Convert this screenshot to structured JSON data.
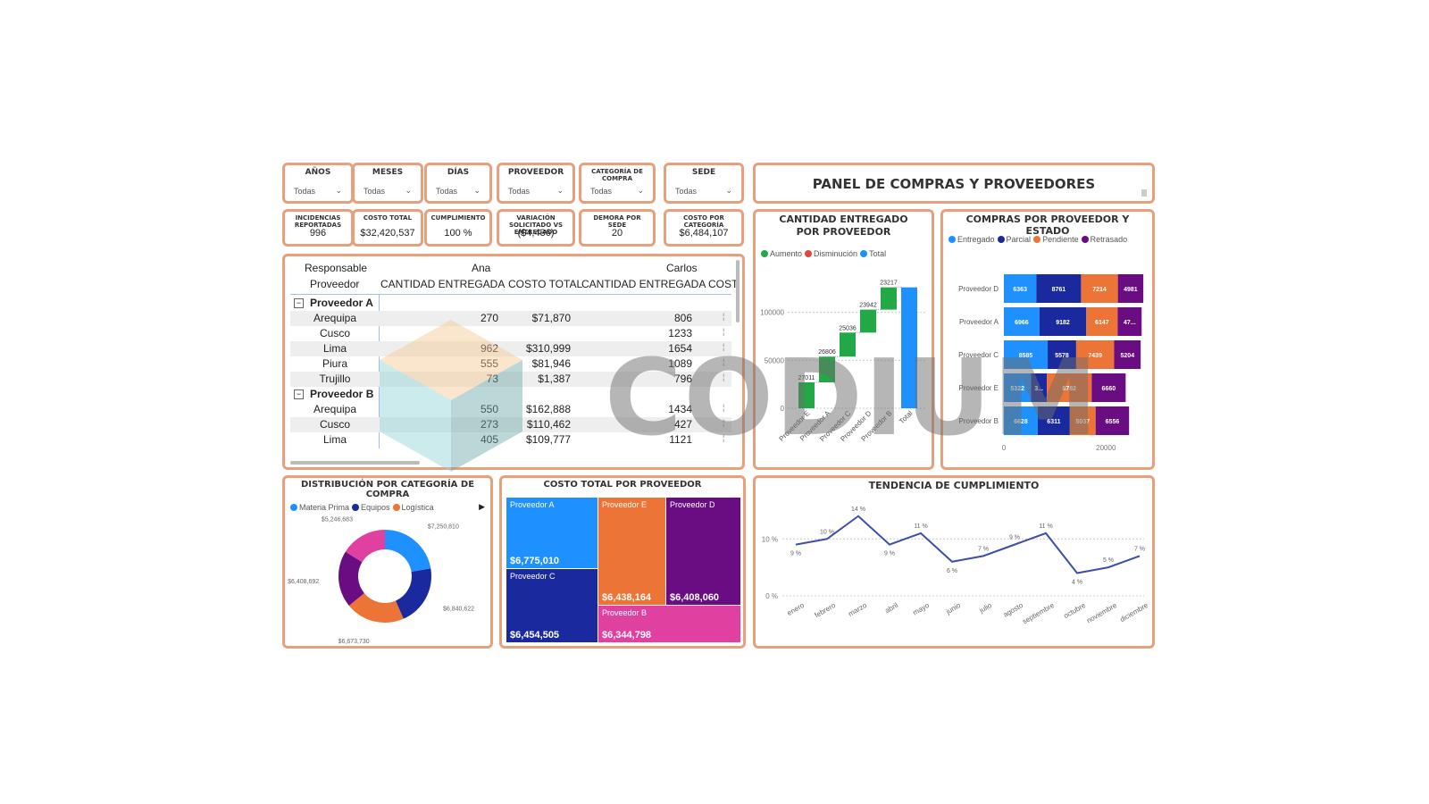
{
  "slicers": [
    {
      "label": "AÑOS",
      "value": "Todas"
    },
    {
      "label": "MESES",
      "value": "Todas"
    },
    {
      "label": "DÍAS",
      "value": "Todas"
    },
    {
      "label": "PROVEEDOR",
      "value": "Todas"
    },
    {
      "label": "CATEGORÍA DE COMPRA",
      "value": "Todas"
    },
    {
      "label": "SEDE",
      "value": "Todas"
    }
  ],
  "kpis": [
    {
      "label": "INCIDENCIAS REPORTADAS",
      "value": "996"
    },
    {
      "label": "COSTO TOTAL",
      "value": "$32,420,537"
    },
    {
      "label": "CUMPLIMIENTO",
      "value": "100 %"
    },
    {
      "label": "VARIACIÓN SOLICITADO VS ENTREGADO",
      "value": "($4,436)"
    },
    {
      "label": "DEMORA POR SEDE",
      "value": "20"
    },
    {
      "label": "COSTO POR CATEGORÍA",
      "value": "$6,484,107"
    }
  ],
  "header": {
    "title": "PANEL DE COMPRAS Y PROVEEDORES"
  },
  "matrix": {
    "row_header_1": "Responsable",
    "row_header_2": "Proveedor",
    "responsables": [
      "Ana",
      "Carlos"
    ],
    "columns": [
      "CANTIDAD ENTREGADA",
      "COSTO TOTAL",
      "CANTIDAD ENTREGADA",
      "COST"
    ],
    "groups": [
      {
        "name": "Proveedor A",
        "rows": [
          {
            "sede": "Arequipa",
            "ana_qty": "270",
            "ana_cost": "$71,870",
            "carlos_qty": "806"
          },
          {
            "sede": "Cusco",
            "ana_qty": "",
            "ana_cost": "",
            "carlos_qty": "1233"
          },
          {
            "sede": "Lima",
            "ana_qty": "962",
            "ana_cost": "$310,999",
            "carlos_qty": "1654"
          },
          {
            "sede": "Piura",
            "ana_qty": "555",
            "ana_cost": "$81,946",
            "carlos_qty": "1089"
          },
          {
            "sede": "Trujillo",
            "ana_qty": "73",
            "ana_cost": "$1,387",
            "carlos_qty": "796"
          }
        ]
      },
      {
        "name": "Proveedor B",
        "rows": [
          {
            "sede": "Arequipa",
            "ana_qty": "550",
            "ana_cost": "$162,888",
            "carlos_qty": "1434"
          },
          {
            "sede": "Cusco",
            "ana_qty": "273",
            "ana_cost": "$110,462",
            "carlos_qty": "427"
          },
          {
            "sede": "Lima",
            "ana_qty": "405",
            "ana_cost": "$109,777",
            "carlos_qty": "1121"
          }
        ]
      }
    ],
    "collapse_icon": "minus-box-icon"
  },
  "watermark": {
    "text": "CODIUM"
  },
  "chart_data": [
    {
      "id": "waterfall",
      "type": "bar",
      "title": "CANTIDAD ENTREGADO POR PROVEEDOR",
      "legend": [
        {
          "name": "Aumento",
          "color": "#22a846"
        },
        {
          "name": "Disminución",
          "color": "#e0463f"
        },
        {
          "name": "Total",
          "color": "#1e90ff"
        }
      ],
      "categories": [
        "Proveedor E",
        "Proveedor A",
        "Proveedor C",
        "Proveedor D",
        "Proveedor B",
        "Total"
      ],
      "cumulative": [
        27011,
        26806,
        25036,
        23942,
        23217
      ],
      "values": [
        27011,
        26806,
        25036,
        23942,
        23217,
        126012
      ],
      "labels": [
        "27011",
        "26806",
        "25036",
        "23942",
        "23217",
        ""
      ],
      "y_ticks": [
        "0",
        "50000",
        "100000"
      ],
      "ylim": [
        0,
        135000
      ]
    },
    {
      "id": "stacked",
      "type": "bar",
      "title": "COMPRAS POR PROVEEDOR Y ESTADO",
      "legend": [
        {
          "name": "Entregado",
          "color": "#1e90ff"
        },
        {
          "name": "Parcial",
          "color": "#1a2a9e"
        },
        {
          "name": "Pendiente",
          "color": "#ec7436"
        },
        {
          "name": "Retrasado",
          "color": "#6a0d83"
        }
      ],
      "categories": [
        "Proveedor D",
        "Proveedor A",
        "Proveedor C",
        "Proveedor E",
        "Proveedor B"
      ],
      "series": [
        {
          "name": "Entregado",
          "values": [
            6363,
            6966,
            8585,
            5322,
            6628
          ],
          "labels": [
            "6363",
            "6966",
            "8585",
            "5322",
            "6628"
          ]
        },
        {
          "name": "Parcial",
          "values": [
            8761,
            9182,
            5578,
            3100,
            6311
          ],
          "labels": [
            "8761",
            "9182",
            "5578",
            "3...",
            "6311"
          ]
        },
        {
          "name": "Pendiente",
          "values": [
            7214,
            6147,
            7439,
            8782,
            5037
          ],
          "labels": [
            "7214",
            "6147",
            "7439",
            "8782",
            "5037"
          ]
        },
        {
          "name": "Retrasado",
          "values": [
            4981,
            4700,
            5204,
            6660,
            6556
          ],
          "labels": [
            "4981",
            "47...",
            "5204",
            "6660",
            "6556"
          ]
        }
      ],
      "x_ticks": [
        "0",
        "20000"
      ],
      "xlim": [
        0,
        28000
      ]
    },
    {
      "id": "donut",
      "type": "pie",
      "title": "DISTRIBUCIÓN POR CATEGORÍA DE COMPRA",
      "legend": [
        {
          "name": "Materia Prima",
          "color": "#1e90ff"
        },
        {
          "name": "Equipos",
          "color": "#1a2a9e"
        },
        {
          "name": "Logística",
          "color": "#ec7436"
        }
      ],
      "slices": [
        {
          "label": "$7,250,810",
          "value": 7250810,
          "color": "#1e90ff"
        },
        {
          "label": "$6,840,622",
          "value": 6840622,
          "color": "#1a2a9e"
        },
        {
          "label": "$6,673,730",
          "value": 6673730,
          "color": "#ec7436"
        },
        {
          "label": "$6,408,692",
          "value": 6408692,
          "color": "#6a0d83"
        },
        {
          "label": "$5,246,683",
          "value": 5246683,
          "color": "#e040a0"
        }
      ]
    },
    {
      "id": "treemap",
      "type": "heatmap",
      "title": "COSTO TOTAL POR PROVEEDOR",
      "items": [
        {
          "name": "Proveedor A",
          "value": "$6,775,010",
          "color": "#1e90ff"
        },
        {
          "name": "Proveedor C",
          "value": "$6,454,505",
          "color": "#1a2a9e"
        },
        {
          "name": "Proveedor E",
          "value": "$6,438,164",
          "color": "#ec7436"
        },
        {
          "name": "Proveedor D",
          "value": "$6,408,060",
          "color": "#6a0d83"
        },
        {
          "name": "Proveedor B",
          "value": "$6,344,798",
          "color": "#e040a0"
        }
      ]
    },
    {
      "id": "line",
      "type": "line",
      "title": "TENDENCIA DE CUMPLIMIENTO",
      "categories": [
        "enero",
        "febrero",
        "marzo",
        "abril",
        "mayo",
        "junio",
        "julio",
        "agosto",
        "septiembre",
        "octubre",
        "noviembre",
        "diciembre"
      ],
      "values": [
        9,
        10,
        14,
        9,
        11,
        6,
        7,
        9,
        11,
        4,
        5,
        7
      ],
      "labels": [
        "9 %",
        "10 %",
        "14 %",
        "9 %",
        "11 %",
        "6 %",
        "7 %",
        "9 %",
        "11 %",
        "4 %",
        "5 %",
        "7 %"
      ],
      "y_ticks": [
        "0 %",
        "10 %"
      ],
      "ylim": [
        0,
        16
      ],
      "color": "#3e4fa8"
    }
  ]
}
